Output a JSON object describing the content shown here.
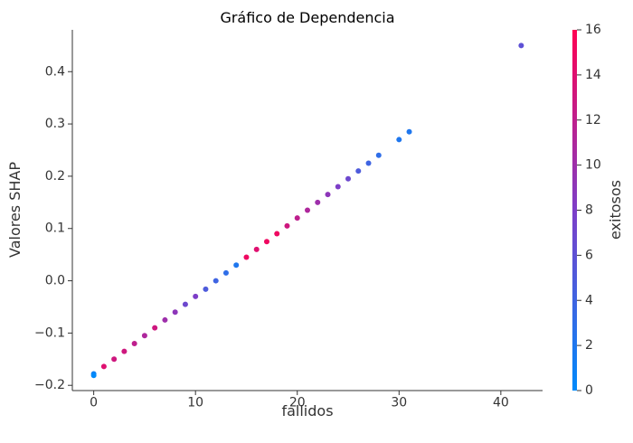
{
  "chart_data": {
    "type": "scatter",
    "title": "Gráfico de Dependencia",
    "xlabel": "fallidos",
    "ylabel": "Valores SHAP",
    "colorbar_label": "exitosos",
    "xlim": [
      -2.1,
      44.1
    ],
    "ylim": [
      -0.21,
      0.48
    ],
    "xticks": [
      0,
      10,
      20,
      30,
      40
    ],
    "yticks": [
      -0.2,
      -0.1,
      0.0,
      0.1,
      0.2,
      0.3,
      0.4
    ],
    "ytick_labels": [
      "−0.2",
      "−0.1",
      "0.0",
      "0.1",
      "0.2",
      "0.3",
      "0.4"
    ],
    "colorbar_ticks": [
      0,
      2,
      4,
      6,
      8,
      10,
      12,
      14,
      16
    ],
    "colorbar_range": [
      0,
      16
    ],
    "colors": {
      "low": "#008afb",
      "mid": "#7d3ec8",
      "high": "#ff0052"
    },
    "grid": false,
    "points": [
      {
        "x": 0,
        "y": -0.178,
        "c": 1
      },
      {
        "x": 0,
        "y": -0.181,
        "c": 0
      },
      {
        "x": 1,
        "y": -0.164,
        "c": 14
      },
      {
        "x": 2,
        "y": -0.15,
        "c": 13
      },
      {
        "x": 3,
        "y": -0.135,
        "c": 13
      },
      {
        "x": 4,
        "y": -0.12,
        "c": 12
      },
      {
        "x": 5,
        "y": -0.105,
        "c": 11
      },
      {
        "x": 6,
        "y": -0.09,
        "c": 13
      },
      {
        "x": 7,
        "y": -0.075,
        "c": 10
      },
      {
        "x": 8,
        "y": -0.06,
        "c": 9
      },
      {
        "x": 9,
        "y": -0.045,
        "c": 7
      },
      {
        "x": 10,
        "y": -0.03,
        "c": 8
      },
      {
        "x": 11,
        "y": -0.016,
        "c": 5
      },
      {
        "x": 12,
        "y": 0.0,
        "c": 4
      },
      {
        "x": 13,
        "y": 0.015,
        "c": 3
      },
      {
        "x": 14,
        "y": 0.03,
        "c": 2
      },
      {
        "x": 15,
        "y": 0.045,
        "c": 15
      },
      {
        "x": 16,
        "y": 0.06,
        "c": 14
      },
      {
        "x": 17,
        "y": 0.075,
        "c": 15
      },
      {
        "x": 18,
        "y": 0.09,
        "c": 15
      },
      {
        "x": 19,
        "y": 0.105,
        "c": 13
      },
      {
        "x": 20,
        "y": 0.12,
        "c": 12
      },
      {
        "x": 21,
        "y": 0.135,
        "c": 11
      },
      {
        "x": 22,
        "y": 0.15,
        "c": 10
      },
      {
        "x": 23,
        "y": 0.165,
        "c": 9
      },
      {
        "x": 24,
        "y": 0.18,
        "c": 8
      },
      {
        "x": 25,
        "y": 0.195,
        "c": 7
      },
      {
        "x": 26,
        "y": 0.21,
        "c": 5
      },
      {
        "x": 27,
        "y": 0.225,
        "c": 4
      },
      {
        "x": 28,
        "y": 0.24,
        "c": 3
      },
      {
        "x": 30,
        "y": 0.27,
        "c": 2
      },
      {
        "x": 31,
        "y": 0.285,
        "c": 2
      },
      {
        "x": 42,
        "y": 0.45,
        "c": 6
      }
    ]
  }
}
